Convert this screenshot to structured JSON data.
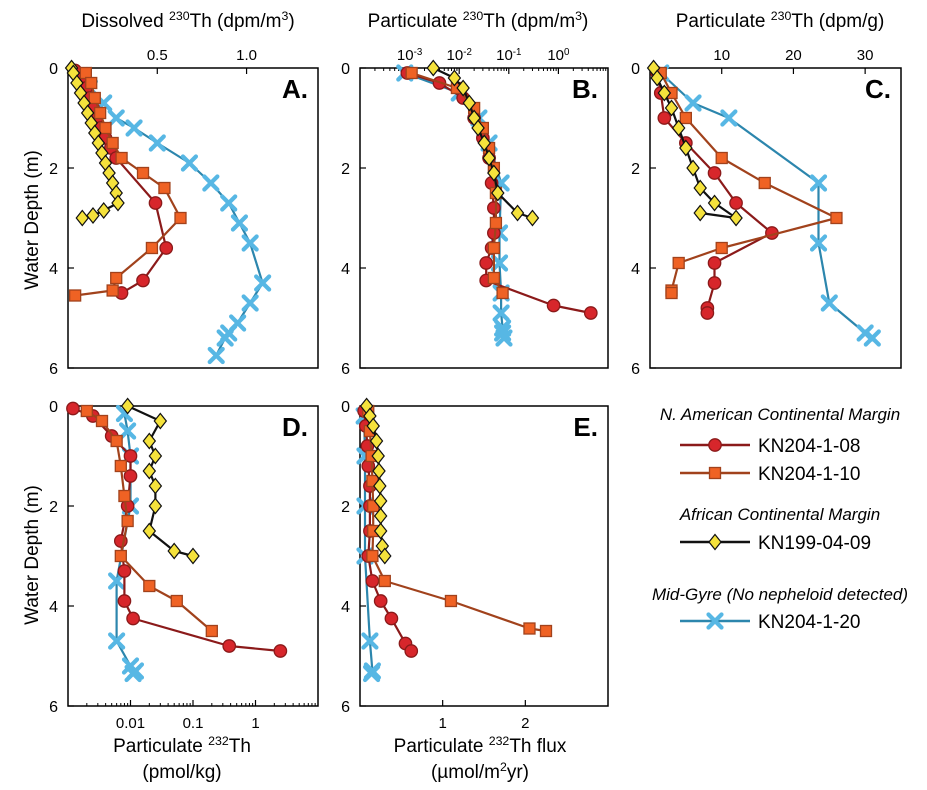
{
  "figure": {
    "panel_titles": [
      "Dissolved ²³⁰Th (dpm/m³)",
      "Particulate ²³⁰Th (dpm/m³)",
      "Particulate ²³⁰Th (dpm/g)"
    ],
    "y_label": "Water Depth (m)",
    "bottom_labels": [
      {
        "line1": "Particulate ²³²Th",
        "line2": "(pmol/kg)"
      },
      {
        "line1": "Particulate ²³²Th flux",
        "line2": "(µmol/m²yr)"
      }
    ]
  },
  "legend": {
    "groups": [
      {
        "heading": "N. American Continental Margin",
        "entries": [
          {
            "series": "s08",
            "label": "KN204-1-08"
          },
          {
            "series": "s10",
            "label": "KN204-1-10"
          }
        ]
      },
      {
        "heading": "African Continental Margin",
        "entries": [
          {
            "series": "s09",
            "label": "KN199-04-09"
          }
        ]
      },
      {
        "heading": "Mid-Gyre (No nepheloid detected)",
        "entries": [
          {
            "series": "s20",
            "label": "KN204-1-20"
          }
        ]
      }
    ]
  },
  "series_styles": {
    "s08": {
      "marker": "circle",
      "fill": "#d7262b",
      "line": "#8b1a1a"
    },
    "s10": {
      "marker": "square",
      "fill": "#ef6224",
      "line": "#a1421c"
    },
    "s09": {
      "marker": "diamond",
      "fill": "#f5e23c",
      "line": "#111111"
    },
    "s20": {
      "marker": "x",
      "fill": "#57b7e4",
      "line": "#2c86ad"
    }
  },
  "chart_data": [
    {
      "panel": "A.",
      "type": "line",
      "xscale": "linear",
      "xlim": [
        0,
        1.4
      ],
      "ylim": [
        0,
        6
      ],
      "xticks": [
        0.5,
        1.0
      ],
      "xtick_labels": [
        "0.5",
        "1.0"
      ],
      "xaxis_position": "top",
      "yticks": [
        0,
        2,
        4,
        6
      ],
      "ytick_labels": [
        "0",
        "2",
        "4",
        "6"
      ],
      "series": [
        {
          "key": "s08",
          "y": [
            0.05,
            0.2,
            0.4,
            0.6,
            0.8,
            1.0,
            1.2,
            1.4,
            1.6,
            1.8,
            2.7,
            3.6,
            4.25,
            4.5
          ],
          "x": [
            0.04,
            0.08,
            0.1,
            0.12,
            0.14,
            0.16,
            0.18,
            0.21,
            0.24,
            0.27,
            0.49,
            0.55,
            0.42,
            0.3
          ]
        },
        {
          "key": "s10",
          "y": [
            0.1,
            0.3,
            0.6,
            0.9,
            1.2,
            1.5,
            1.8,
            2.1,
            2.4,
            3.0,
            3.6,
            4.2,
            4.45,
            4.55
          ],
          "x": [
            0.1,
            0.13,
            0.15,
            0.18,
            0.21,
            0.25,
            0.3,
            0.42,
            0.54,
            0.63,
            0.47,
            0.27,
            0.25,
            0.04
          ]
        },
        {
          "key": "s09",
          "y": [
            0.0,
            0.1,
            0.3,
            0.5,
            0.7,
            0.9,
            1.1,
            1.3,
            1.5,
            1.7,
            1.9,
            2.1,
            2.3,
            2.5,
            2.7,
            2.85,
            2.95,
            3.0
          ],
          "x": [
            0.02,
            0.03,
            0.05,
            0.07,
            0.09,
            0.11,
            0.13,
            0.15,
            0.17,
            0.19,
            0.21,
            0.23,
            0.25,
            0.27,
            0.28,
            0.2,
            0.14,
            0.08
          ]
        },
        {
          "key": "s20",
          "y": [
            0.15,
            0.4,
            0.7,
            1.0,
            1.2,
            1.5,
            1.9,
            2.3,
            2.7,
            3.1,
            3.5,
            4.3,
            4.7,
            5.1,
            5.3,
            5.4,
            5.75
          ],
          "x": [
            0.07,
            0.12,
            0.2,
            0.27,
            0.37,
            0.5,
            0.68,
            0.8,
            0.9,
            0.96,
            1.02,
            1.09,
            1.02,
            0.95,
            0.9,
            0.88,
            0.83
          ]
        }
      ]
    },
    {
      "panel": "B.",
      "type": "line",
      "xscale": "log",
      "xlim": [
        0.0001,
        10
      ],
      "ylim": [
        0,
        6
      ],
      "xticks": [
        0.001,
        0.01,
        0.1,
        1
      ],
      "xtick_labels": [
        "10⁻³",
        "10⁻²",
        "10⁻¹",
        "10⁰"
      ],
      "xaxis_position": "top",
      "yticks": [
        0,
        2,
        4,
        6
      ],
      "ytick_labels": [
        "0",
        "2",
        "4",
        "6"
      ],
      "series": [
        {
          "key": "s08",
          "y": [
            0.1,
            0.3,
            0.6,
            1.0,
            1.4,
            1.8,
            2.3,
            2.8,
            3.3,
            3.6,
            3.9,
            4.25,
            4.75,
            4.9
          ],
          "x": [
            0.0009,
            0.004,
            0.012,
            0.02,
            0.03,
            0.04,
            0.045,
            0.05,
            0.05,
            0.045,
            0.035,
            0.035,
            0.8,
            4.5
          ]
        },
        {
          "key": "s10",
          "y": [
            0.1,
            0.4,
            0.8,
            1.2,
            1.6,
            2.0,
            2.5,
            3.1,
            3.6,
            4.2,
            4.5
          ],
          "x": [
            0.0011,
            0.009,
            0.02,
            0.03,
            0.04,
            0.05,
            0.055,
            0.055,
            0.05,
            0.05,
            0.075
          ]
        },
        {
          "key": "s09",
          "y": [
            0.0,
            0.2,
            0.4,
            0.7,
            1.0,
            1.2,
            1.5,
            1.8,
            2.1,
            2.5,
            2.9,
            3.0
          ],
          "x": [
            0.003,
            0.008,
            0.012,
            0.016,
            0.02,
            0.024,
            0.032,
            0.04,
            0.05,
            0.06,
            0.15,
            0.3
          ]
        },
        {
          "key": "s20",
          "y": [
            0.1,
            0.5,
            1.0,
            1.5,
            2.3,
            3.3,
            3.9,
            4.5,
            4.9,
            5.2,
            5.3,
            5.4
          ],
          "x": [
            0.0008,
            0.01,
            0.025,
            0.04,
            0.07,
            0.065,
            0.065,
            0.07,
            0.07,
            0.075,
            0.075,
            0.08
          ]
        }
      ]
    },
    {
      "panel": "C.",
      "type": "line",
      "xscale": "linear",
      "xlim": [
        0,
        35
      ],
      "ylim": [
        0,
        6
      ],
      "xticks": [
        10,
        20,
        30
      ],
      "xtick_labels": [
        "10",
        "20",
        "30"
      ],
      "xaxis_position": "top",
      "yticks": [
        0,
        2,
        4,
        6
      ],
      "ytick_labels": [
        "0",
        "2",
        "4",
        "6"
      ],
      "series": [
        {
          "key": "s08",
          "y": [
            0.1,
            0.5,
            1.0,
            1.5,
            2.1,
            2.7,
            3.3,
            3.9,
            4.3,
            4.8,
            4.9
          ],
          "x": [
            1.0,
            1.5,
            2.0,
            5.0,
            9.0,
            12.0,
            17.0,
            9.0,
            9.0,
            8.0,
            8.0
          ]
        },
        {
          "key": "s10",
          "y": [
            0.1,
            0.5,
            1.0,
            1.8,
            2.3,
            3.0,
            3.6,
            3.9,
            4.45,
            4.5
          ],
          "x": [
            1.5,
            3.0,
            5.0,
            10.0,
            16.0,
            26.0,
            10.0,
            4.0,
            3.0,
            3.0
          ]
        },
        {
          "key": "s09",
          "y": [
            0.0,
            0.2,
            0.5,
            0.8,
            1.2,
            1.6,
            2.0,
            2.4,
            2.7,
            3.0,
            2.9
          ],
          "x": [
            0.5,
            1.0,
            2.0,
            3.0,
            4.0,
            5.0,
            6.0,
            7.0,
            9.0,
            12.0,
            7.0
          ]
        },
        {
          "key": "s20",
          "y": [
            0.1,
            0.7,
            1.0,
            2.3,
            3.5,
            4.7,
            5.3,
            5.4
          ],
          "x": [
            1.5,
            6.0,
            11.0,
            23.5,
            23.5,
            25.0,
            30.0,
            31.0
          ]
        }
      ]
    },
    {
      "panel": "D.",
      "type": "line",
      "xscale": "log",
      "xlim": [
        0.001,
        10
      ],
      "ylim": [
        0,
        6
      ],
      "xticks": [
        0.01,
        0.1,
        1
      ],
      "xtick_labels": [
        "0.01",
        "0.1",
        "1"
      ],
      "xaxis_position": "bottom",
      "yticks": [
        0,
        2,
        4,
        6
      ],
      "ytick_labels": [
        "0",
        "2",
        "4",
        "6"
      ],
      "series": [
        {
          "key": "s08",
          "y": [
            0.05,
            0.2,
            0.6,
            1.0,
            1.4,
            2.0,
            2.7,
            3.3,
            3.9,
            4.25,
            4.8,
            4.9
          ],
          "x": [
            0.0012,
            0.0025,
            0.005,
            0.01,
            0.01,
            0.009,
            0.007,
            0.008,
            0.008,
            0.011,
            0.38,
            2.5
          ]
        },
        {
          "key": "s10",
          "y": [
            0.1,
            0.3,
            0.7,
            1.2,
            1.8,
            2.3,
            3.0,
            3.6,
            3.9,
            4.5
          ],
          "x": [
            0.002,
            0.0035,
            0.006,
            0.007,
            0.008,
            0.009,
            0.007,
            0.02,
            0.055,
            0.2
          ]
        },
        {
          "key": "s09",
          "y": [
            0.0,
            0.3,
            0.7,
            1.0,
            1.3,
            1.6,
            2.0,
            2.5,
            2.9,
            3.0
          ],
          "x": [
            0.009,
            0.03,
            0.02,
            0.025,
            0.02,
            0.025,
            0.025,
            0.02,
            0.05,
            0.1
          ]
        },
        {
          "key": "s20",
          "y": [
            0.15,
            0.5,
            1.0,
            2.0,
            3.5,
            4.7,
            5.2,
            5.3,
            5.35
          ],
          "x": [
            0.008,
            0.009,
            0.01,
            0.01,
            0.006,
            0.006,
            0.01,
            0.012,
            0.011
          ]
        }
      ]
    },
    {
      "panel": "E.",
      "type": "line",
      "xscale": "linear",
      "xlim": [
        0,
        3
      ],
      "ylim": [
        0,
        6
      ],
      "xticks": [
        1,
        2
      ],
      "xtick_labels": [
        "1",
        "2"
      ],
      "xaxis_position": "bottom",
      "yticks": [
        0,
        2,
        4,
        6
      ],
      "ytick_labels": [
        "0",
        "2",
        "4",
        "6"
      ],
      "series": [
        {
          "key": "s08",
          "y": [
            0.1,
            0.4,
            0.8,
            1.2,
            1.6,
            2.0,
            2.5,
            3.0,
            3.5,
            3.9,
            4.25,
            4.75,
            4.9
          ],
          "x": [
            0.05,
            0.07,
            0.09,
            0.1,
            0.12,
            0.12,
            0.12,
            0.1,
            0.15,
            0.25,
            0.38,
            0.55,
            0.62
          ]
        },
        {
          "key": "s10",
          "y": [
            0.1,
            0.5,
            1.0,
            1.5,
            2.0,
            2.5,
            3.0,
            3.5,
            3.9,
            4.45,
            4.5
          ],
          "x": [
            0.1,
            0.12,
            0.14,
            0.15,
            0.16,
            0.16,
            0.15,
            0.3,
            1.1,
            2.05,
            2.25
          ]
        },
        {
          "key": "s09",
          "y": [
            0.0,
            0.2,
            0.4,
            0.7,
            1.0,
            1.3,
            1.6,
            1.9,
            2.2,
            2.5,
            2.8,
            3.0
          ],
          "x": [
            0.08,
            0.12,
            0.16,
            0.2,
            0.22,
            0.23,
            0.24,
            0.25,
            0.25,
            0.25,
            0.27,
            0.3
          ]
        },
        {
          "key": "s20",
          "y": [
            0.2,
            1.0,
            2.0,
            3.0,
            4.7,
            5.3,
            5.35
          ],
          "x": [
            0.05,
            0.06,
            0.06,
            0.06,
            0.12,
            0.15,
            0.14
          ]
        }
      ]
    }
  ]
}
